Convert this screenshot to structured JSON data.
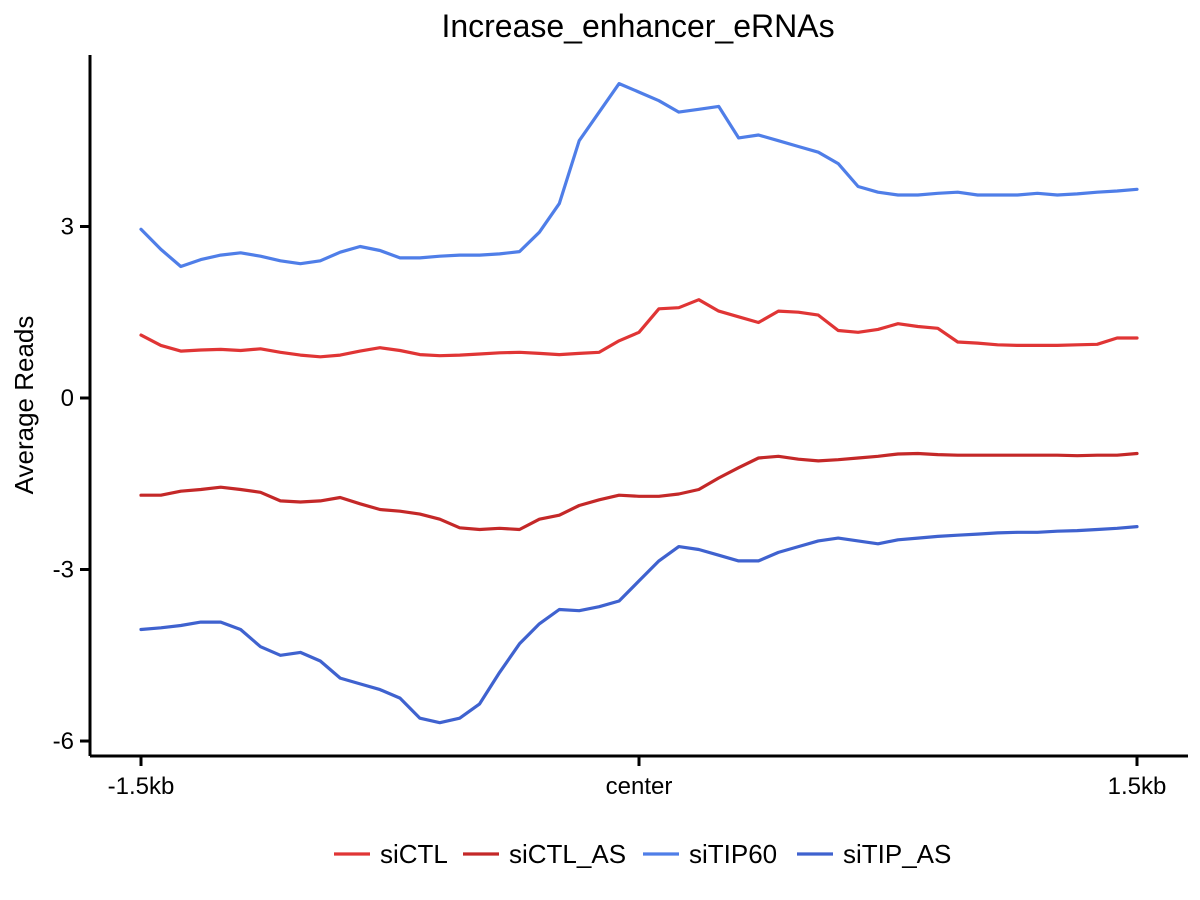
{
  "chart_data": {
    "type": "line",
    "title": "Increase_enhancer_eRNAs",
    "xlabel": "",
    "ylabel": "Average Reads",
    "xlim": [
      -1.5,
      1.5
    ],
    "ylim": [
      -6.25,
      6
    ],
    "x_ticks": [
      {
        "value": -1.5,
        "label": "-1.5kb"
      },
      {
        "value": 0,
        "label": "center"
      },
      {
        "value": 1.5,
        "label": "1.5kb"
      }
    ],
    "y_ticks": [
      {
        "value": 3,
        "label": "3"
      },
      {
        "value": 0,
        "label": "0"
      },
      {
        "value": -3,
        "label": "-3"
      },
      {
        "value": -6,
        "label": "-6"
      }
    ],
    "grid": false,
    "legend_position": "bottom",
    "series": [
      {
        "name": "siCTL",
        "color": "#e03535",
        "x": [
          -1.5,
          -1.44,
          -1.38,
          -1.32,
          -1.26,
          -1.2,
          -1.14,
          -1.08,
          -1.02,
          -0.96,
          -0.9,
          -0.84,
          -0.78,
          -0.72,
          -0.66,
          -0.6,
          -0.54,
          -0.48,
          -0.42,
          -0.36,
          -0.3,
          -0.24,
          -0.18,
          -0.12,
          -0.06,
          0,
          0.06,
          0.12,
          0.18,
          0.24,
          0.3,
          0.36,
          0.42,
          0.48,
          0.54,
          0.6,
          0.66,
          0.72,
          0.78,
          0.84,
          0.9,
          0.96,
          1.02,
          1.08,
          1.14,
          1.2,
          1.26,
          1.32,
          1.38,
          1.44,
          1.5
        ],
        "y": [
          1.1,
          0.92,
          0.82,
          0.84,
          0.85,
          0.83,
          0.86,
          0.8,
          0.75,
          0.72,
          0.75,
          0.82,
          0.88,
          0.83,
          0.76,
          0.74,
          0.75,
          0.77,
          0.79,
          0.8,
          0.78,
          0.76,
          0.78,
          0.8,
          1.0,
          1.15,
          1.56,
          1.58,
          1.72,
          1.52,
          1.42,
          1.32,
          1.52,
          1.5,
          1.45,
          1.18,
          1.15,
          1.2,
          1.3,
          1.25,
          1.22,
          0.98,
          0.96,
          0.93,
          0.92,
          0.92,
          0.92,
          0.93,
          0.94,
          1.05,
          1.05
        ]
      },
      {
        "name": "siCTL_AS",
        "color": "#c42828",
        "x": [
          -1.5,
          -1.44,
          -1.38,
          -1.32,
          -1.26,
          -1.2,
          -1.14,
          -1.08,
          -1.02,
          -0.96,
          -0.9,
          -0.84,
          -0.78,
          -0.72,
          -0.66,
          -0.6,
          -0.54,
          -0.48,
          -0.42,
          -0.36,
          -0.3,
          -0.24,
          -0.18,
          -0.12,
          -0.06,
          0,
          0.06,
          0.12,
          0.18,
          0.24,
          0.3,
          0.36,
          0.42,
          0.48,
          0.54,
          0.6,
          0.66,
          0.72,
          0.78,
          0.84,
          0.9,
          0.96,
          1.02,
          1.08,
          1.14,
          1.2,
          1.26,
          1.32,
          1.38,
          1.44,
          1.5
        ],
        "y": [
          -1.7,
          -1.7,
          -1.63,
          -1.6,
          -1.56,
          -1.6,
          -1.65,
          -1.8,
          -1.82,
          -1.8,
          -1.74,
          -1.85,
          -1.95,
          -1.98,
          -2.03,
          -2.12,
          -2.27,
          -2.3,
          -2.28,
          -2.3,
          -2.12,
          -2.05,
          -1.88,
          -1.78,
          -1.7,
          -1.72,
          -1.72,
          -1.68,
          -1.6,
          -1.4,
          -1.22,
          -1.05,
          -1.02,
          -1.07,
          -1.1,
          -1.08,
          -1.05,
          -1.02,
          -0.98,
          -0.97,
          -0.99,
          -1.0,
          -1.0,
          -1.0,
          -1.0,
          -1.0,
          -1.0,
          -1.01,
          -1.0,
          -1.0,
          -0.97
        ]
      },
      {
        "name": "siTIP60",
        "color": "#4f7ee8",
        "x": [
          -1.5,
          -1.44,
          -1.38,
          -1.32,
          -1.26,
          -1.2,
          -1.14,
          -1.08,
          -1.02,
          -0.96,
          -0.9,
          -0.84,
          -0.78,
          -0.72,
          -0.66,
          -0.6,
          -0.54,
          -0.48,
          -0.42,
          -0.36,
          -0.3,
          -0.24,
          -0.18,
          -0.12,
          -0.06,
          0,
          0.06,
          0.12,
          0.18,
          0.24,
          0.3,
          0.36,
          0.42,
          0.48,
          0.54,
          0.6,
          0.66,
          0.72,
          0.78,
          0.84,
          0.9,
          0.96,
          1.02,
          1.08,
          1.14,
          1.2,
          1.26,
          1.32,
          1.38,
          1.44,
          1.5
        ],
        "y": [
          2.95,
          2.6,
          2.3,
          2.42,
          2.5,
          2.54,
          2.48,
          2.4,
          2.35,
          2.4,
          2.55,
          2.65,
          2.58,
          2.45,
          2.45,
          2.48,
          2.5,
          2.5,
          2.52,
          2.56,
          2.9,
          3.4,
          4.5,
          5.0,
          5.5,
          5.35,
          5.2,
          5.0,
          5.05,
          5.1,
          4.55,
          4.6,
          4.5,
          4.4,
          4.3,
          4.1,
          3.7,
          3.6,
          3.55,
          3.55,
          3.58,
          3.6,
          3.55,
          3.55,
          3.55,
          3.58,
          3.55,
          3.57,
          3.6,
          3.62,
          3.65
        ]
      },
      {
        "name": "siTIP_AS",
        "color": "#3f62cf",
        "x": [
          -1.5,
          -1.44,
          -1.38,
          -1.32,
          -1.26,
          -1.2,
          -1.14,
          -1.08,
          -1.02,
          -0.96,
          -0.9,
          -0.84,
          -0.78,
          -0.72,
          -0.66,
          -0.6,
          -0.54,
          -0.48,
          -0.42,
          -0.36,
          -0.3,
          -0.24,
          -0.18,
          -0.12,
          -0.06,
          0,
          0.06,
          0.12,
          0.18,
          0.24,
          0.3,
          0.36,
          0.42,
          0.48,
          0.54,
          0.6,
          0.66,
          0.72,
          0.78,
          0.84,
          0.9,
          0.96,
          1.02,
          1.08,
          1.14,
          1.2,
          1.26,
          1.32,
          1.38,
          1.44,
          1.5
        ],
        "y": [
          -4.05,
          -4.02,
          -3.98,
          -3.92,
          -3.92,
          -4.05,
          -4.35,
          -4.5,
          -4.45,
          -4.6,
          -4.9,
          -5.0,
          -5.1,
          -5.25,
          -5.6,
          -5.68,
          -5.6,
          -5.35,
          -4.8,
          -4.3,
          -3.95,
          -3.7,
          -3.72,
          -3.65,
          -3.55,
          -3.2,
          -2.85,
          -2.6,
          -2.65,
          -2.75,
          -2.85,
          -2.85,
          -2.7,
          -2.6,
          -2.5,
          -2.45,
          -2.5,
          -2.55,
          -2.48,
          -2.45,
          -2.42,
          -2.4,
          -2.38,
          -2.36,
          -2.35,
          -2.35,
          -2.33,
          -2.32,
          -2.3,
          -2.28,
          -2.25
        ]
      }
    ]
  }
}
